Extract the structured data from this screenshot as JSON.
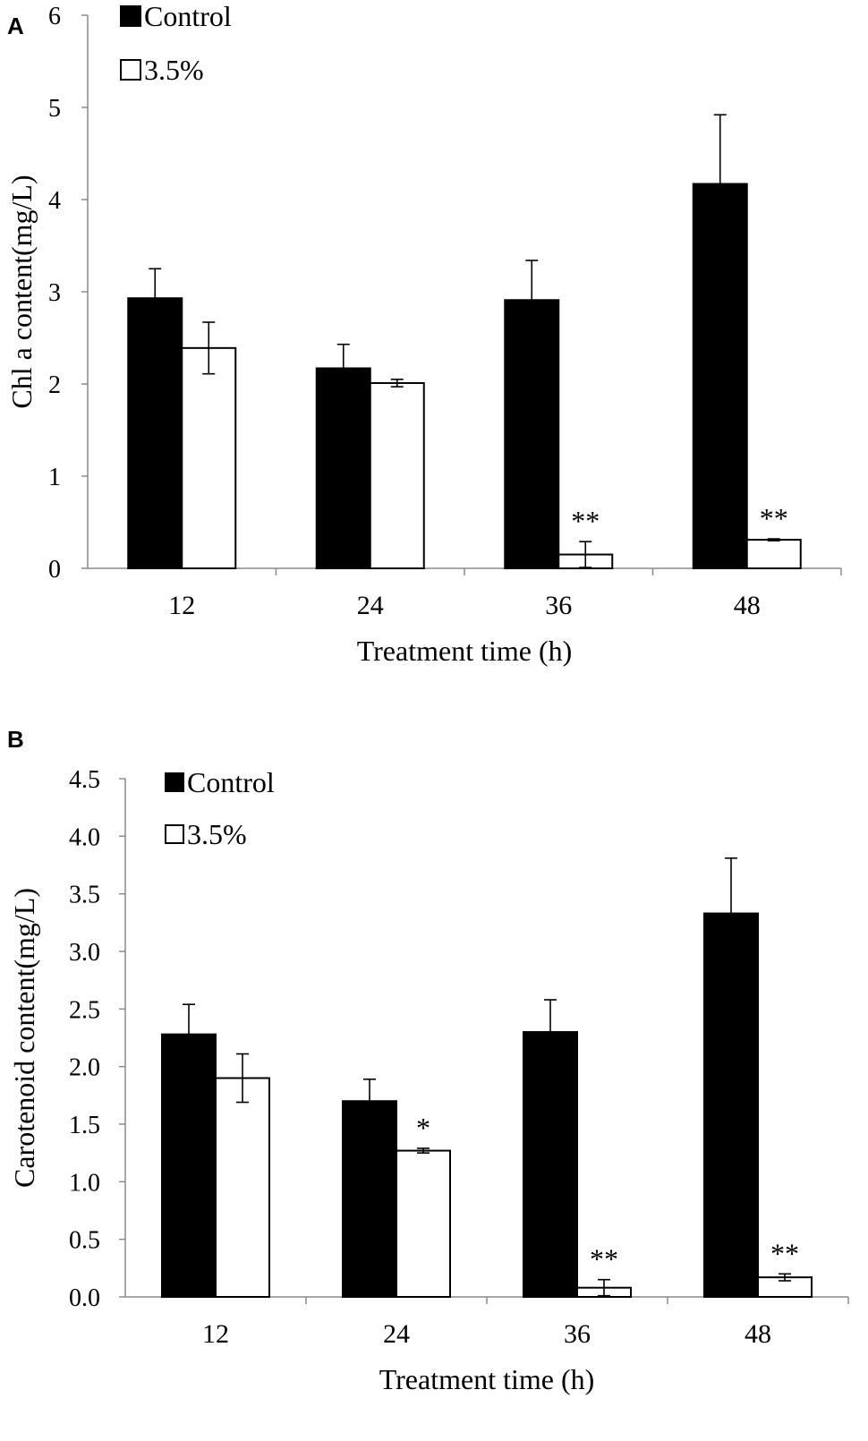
{
  "chart_data": [
    {
      "panel_label": "A",
      "type": "bar",
      "title": "",
      "xlabel": "Treatment time (h)",
      "ylabel": "Chl a content(mg/L)",
      "categories": [
        "12",
        "24",
        "36",
        "48"
      ],
      "ylim": [
        0,
        6
      ],
      "yticks": [
        0,
        1,
        2,
        3,
        4,
        5,
        6
      ],
      "ytick_labels": [
        "0",
        "1",
        "2",
        "3",
        "4",
        "5",
        "6"
      ],
      "grid": false,
      "legend_position": "top-left",
      "series": [
        {
          "name": "Control",
          "color": "#000000",
          "values": [
            2.93,
            2.17,
            2.91,
            4.17
          ],
          "errors": [
            0.32,
            0.26,
            0.43,
            0.75
          ]
        },
        {
          "name": "3.5%",
          "color": "#ffffff",
          "values": [
            2.39,
            2.01,
            0.15,
            0.31
          ],
          "errors": [
            0.28,
            0.04,
            0.14,
            0.01
          ]
        }
      ],
      "annotations": [
        {
          "category": "36",
          "series": "3.5%",
          "text": "**"
        },
        {
          "category": "48",
          "series": "3.5%",
          "text": "**"
        }
      ]
    },
    {
      "panel_label": "B",
      "type": "bar",
      "title": "",
      "xlabel": "Treatment time (h)",
      "ylabel": "Carotenoid content(mg/L)",
      "categories": [
        "12",
        "24",
        "36",
        "48"
      ],
      "ylim": [
        0,
        4.5
      ],
      "yticks": [
        0,
        0.5,
        1,
        1.5,
        2,
        2.5,
        3,
        3.5,
        4,
        4.5
      ],
      "ytick_labels": [
        "0.0",
        "0.5",
        "1.0",
        "1.5",
        "2.0",
        "2.5",
        "3.0",
        "3.5",
        "4.0",
        "4.5"
      ],
      "grid": false,
      "legend_position": "top-left",
      "series": [
        {
          "name": "Control",
          "color": "#000000",
          "values": [
            2.28,
            1.7,
            2.3,
            3.33
          ],
          "errors": [
            0.26,
            0.19,
            0.28,
            0.48
          ]
        },
        {
          "name": "3.5%",
          "color": "#ffffff",
          "values": [
            1.9,
            1.27,
            0.08,
            0.17
          ],
          "errors": [
            0.21,
            0.02,
            0.07,
            0.03
          ]
        }
      ],
      "annotations": [
        {
          "category": "24",
          "series": "3.5%",
          "text": "*"
        },
        {
          "category": "36",
          "series": "3.5%",
          "text": "**"
        },
        {
          "category": "48",
          "series": "3.5%",
          "text": "**"
        }
      ]
    }
  ]
}
